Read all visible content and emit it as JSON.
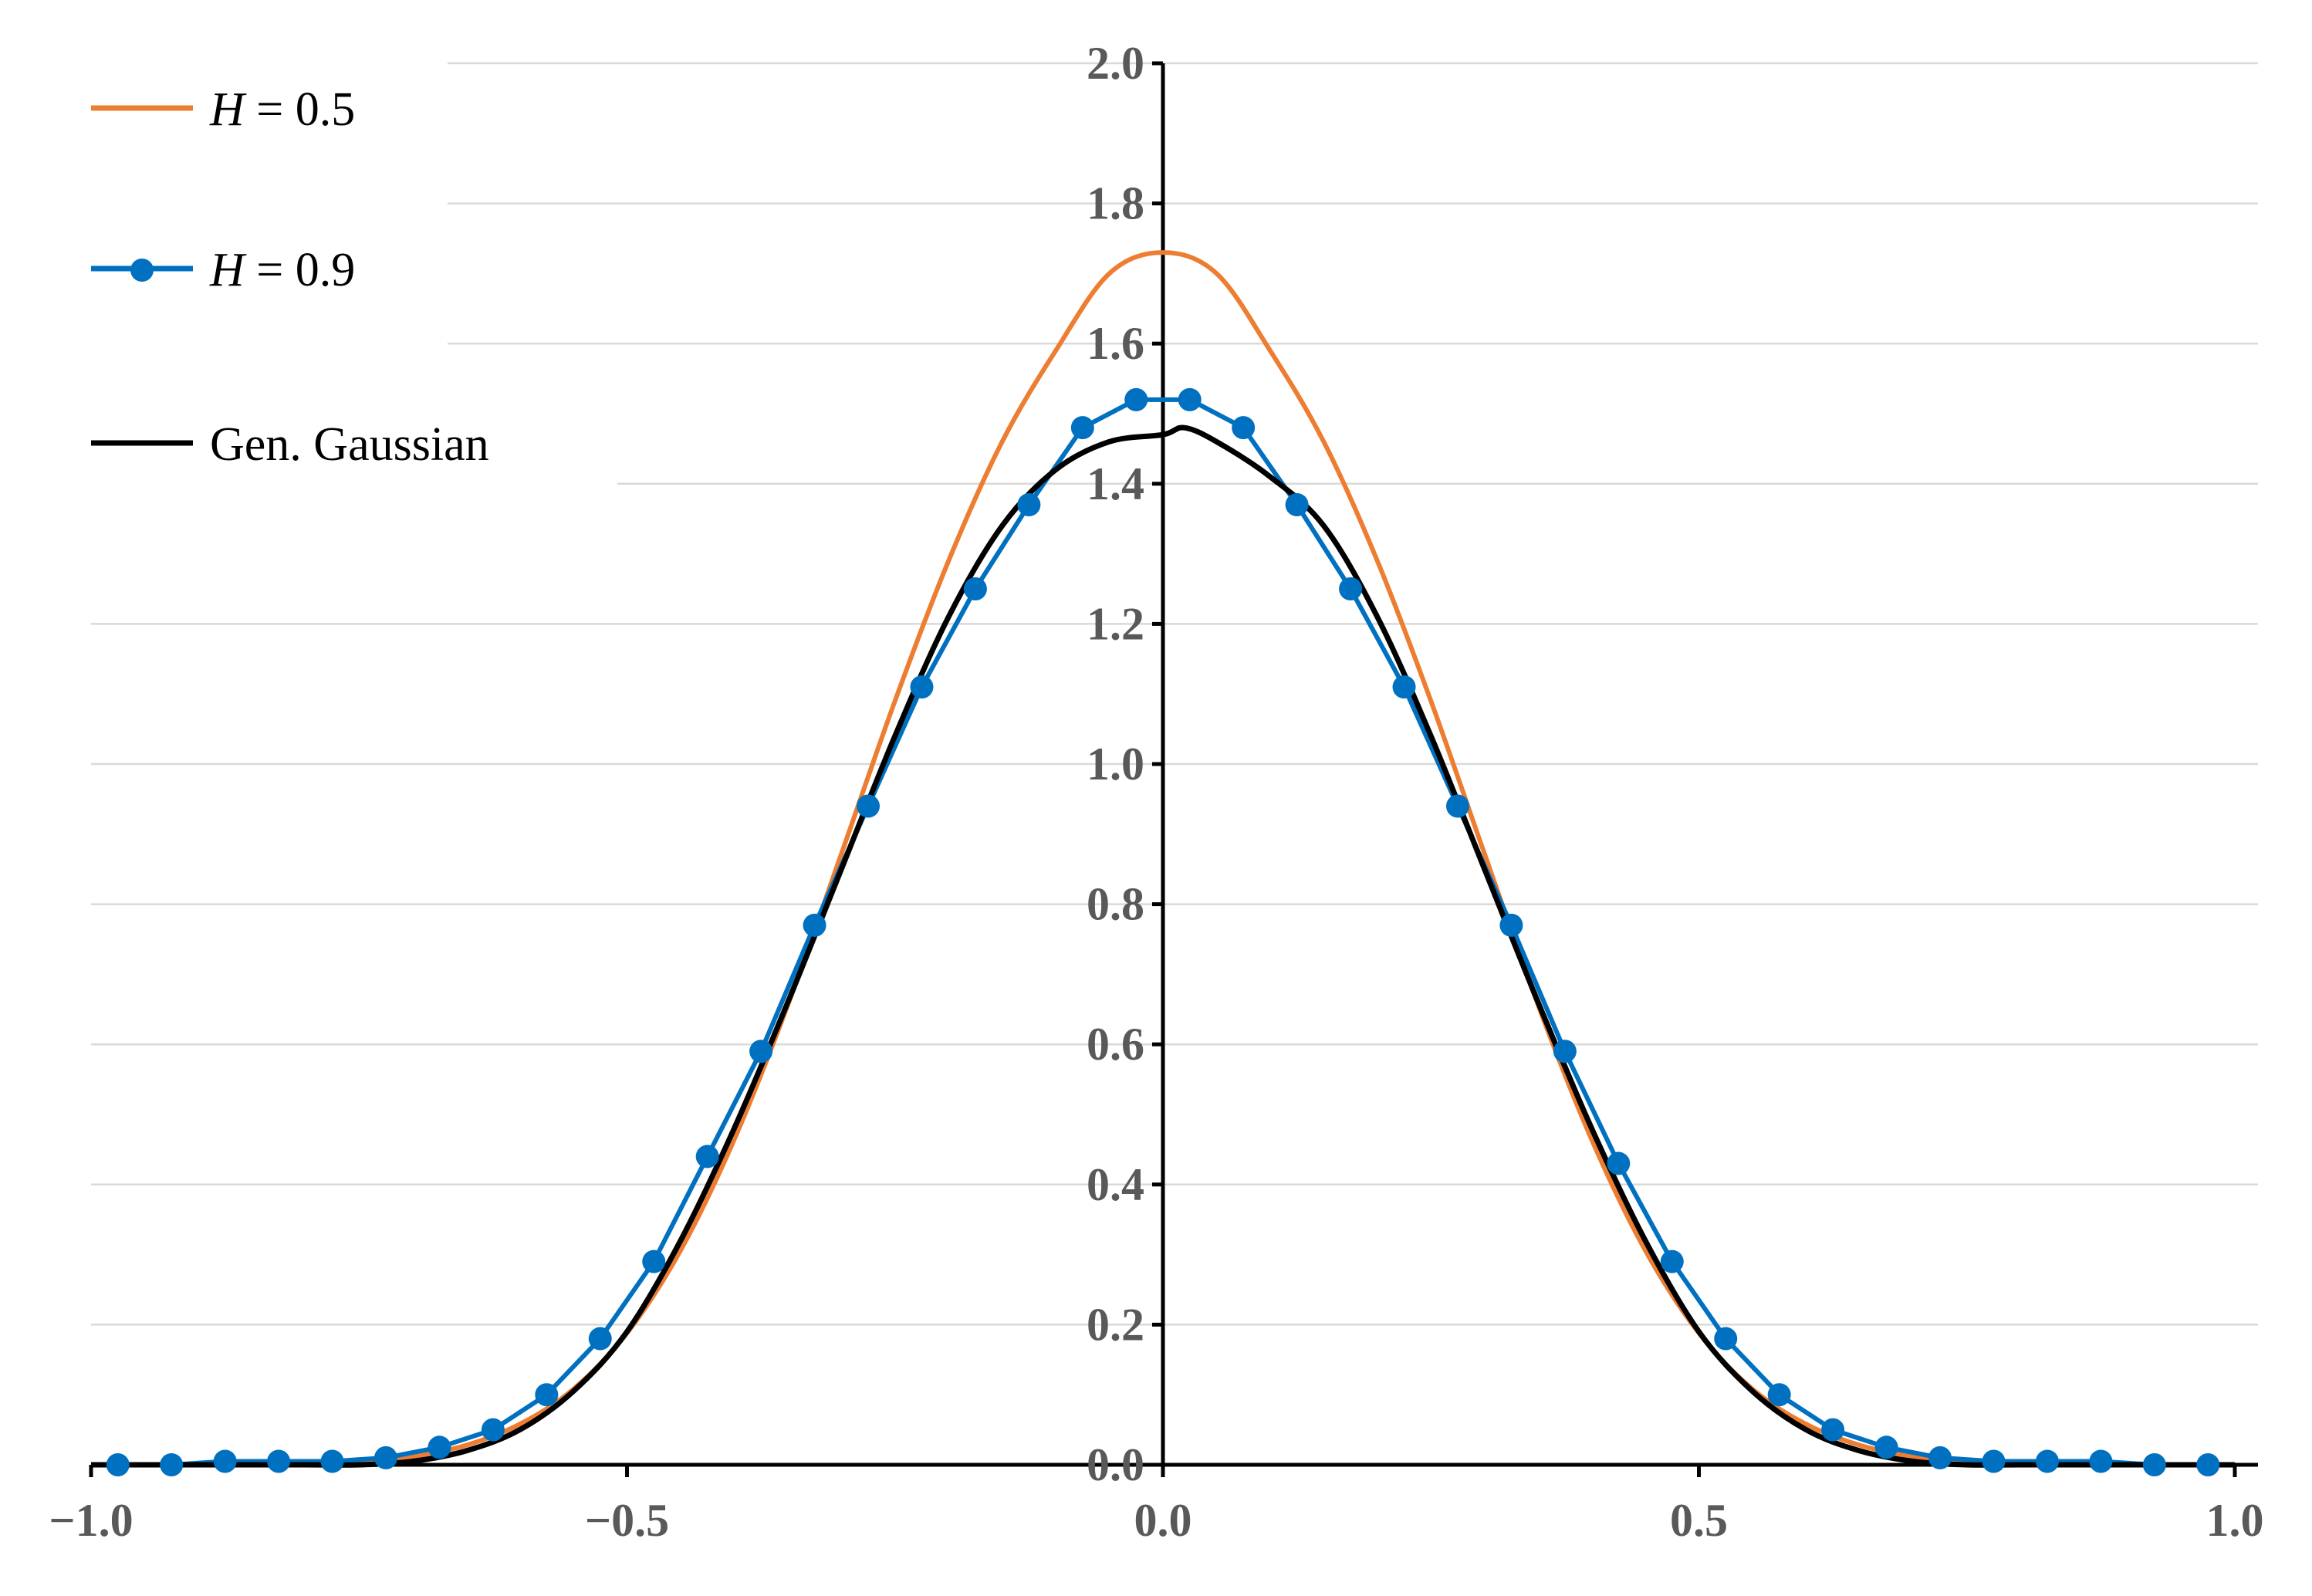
{
  "chart_data": {
    "type": "line",
    "title": "",
    "xlabel": "",
    "ylabel": "",
    "xlim": [
      -1.0,
      1.0
    ],
    "ylim": [
      0.0,
      2.0
    ],
    "x_ticks": [
      "−1.0",
      "−0.5",
      "0.0",
      "0.5",
      "1.0"
    ],
    "y_ticks": [
      "0.0",
      "0.2",
      "0.4",
      "0.6",
      "0.8",
      "1.0",
      "1.2",
      "1.4",
      "1.6",
      "1.8",
      "2.0"
    ],
    "grid": true,
    "legend_position": "top-left",
    "series": [
      {
        "name": "H = 0.5",
        "legend_italic": "H",
        "legend_rest": " = 0.5",
        "color": "#ed7d31",
        "style": "line",
        "x": [
          -1.0,
          -0.9,
          -0.8,
          -0.75,
          -0.7,
          -0.65,
          -0.6,
          -0.55,
          -0.5,
          -0.45,
          -0.4,
          -0.35,
          -0.3,
          -0.25,
          -0.2,
          -0.15,
          -0.1,
          -0.05,
          0.0,
          0.05,
          0.1,
          0.15,
          0.2,
          0.25,
          0.3,
          0.35,
          0.4,
          0.45,
          0.5,
          0.55,
          0.6,
          0.65,
          0.7,
          0.75,
          0.8,
          0.9,
          1.0
        ],
        "y": [
          0.0,
          0.0,
          0.003,
          0.006,
          0.012,
          0.028,
          0.058,
          0.108,
          0.188,
          0.306,
          0.464,
          0.656,
          0.872,
          1.09,
          1.29,
          1.46,
          1.59,
          1.7,
          1.73,
          1.7,
          1.59,
          1.46,
          1.29,
          1.09,
          0.872,
          0.656,
          0.464,
          0.306,
          0.188,
          0.108,
          0.058,
          0.028,
          0.012,
          0.006,
          0.003,
          0.0,
          0.0
        ]
      },
      {
        "name": "H = 0.9",
        "legend_italic": "H",
        "legend_rest": " = 0.9",
        "color": "#0070c0",
        "style": "line-markers",
        "x": [
          -0.975,
          -0.925,
          -0.875,
          -0.825,
          -0.775,
          -0.725,
          -0.675,
          -0.625,
          -0.575,
          -0.525,
          -0.475,
          -0.425,
          -0.375,
          -0.325,
          -0.275,
          -0.225,
          -0.175,
          -0.125,
          -0.075,
          -0.025,
          0.025,
          0.075,
          0.125,
          0.175,
          0.225,
          0.275,
          0.325,
          0.375,
          0.425,
          0.475,
          0.525,
          0.575,
          0.625,
          0.675,
          0.725,
          0.775,
          0.825,
          0.875,
          0.925,
          0.975
        ],
        "y": [
          0.0,
          0.0,
          0.005,
          0.005,
          0.005,
          0.01,
          0.025,
          0.05,
          0.1,
          0.18,
          0.29,
          0.44,
          0.59,
          0.77,
          0.94,
          1.11,
          1.25,
          1.37,
          1.48,
          1.52,
          1.52,
          1.48,
          1.37,
          1.25,
          1.11,
          0.94,
          0.77,
          0.59,
          0.43,
          0.29,
          0.18,
          0.1,
          0.05,
          0.025,
          0.01,
          0.005,
          0.005,
          0.005,
          0.0,
          0.0
        ]
      },
      {
        "name": "Gen. Gaussian",
        "legend_italic": "",
        "legend_rest": "Gen. Gaussian",
        "color": "#000000",
        "style": "line",
        "x": [
          -1.0,
          -0.9,
          -0.8,
          -0.75,
          -0.7,
          -0.65,
          -0.6,
          -0.55,
          -0.5,
          -0.45,
          -0.4,
          -0.35,
          -0.3,
          -0.25,
          -0.2,
          -0.15,
          -0.1,
          -0.05,
          0.0,
          0.02,
          0.05,
          0.1,
          0.15,
          0.2,
          0.25,
          0.3,
          0.35,
          0.4,
          0.45,
          0.5,
          0.55,
          0.6,
          0.65,
          0.7,
          0.75,
          0.8,
          0.9,
          1.0
        ],
        "y": [
          0.0,
          0.0,
          0.0,
          0.0,
          0.005,
          0.02,
          0.05,
          0.105,
          0.19,
          0.32,
          0.48,
          0.66,
          0.85,
          1.04,
          1.21,
          1.34,
          1.42,
          1.46,
          1.47,
          1.48,
          1.46,
          1.41,
          1.34,
          1.21,
          1.04,
          0.85,
          0.66,
          0.48,
          0.32,
          0.19,
          0.105,
          0.05,
          0.02,
          0.005,
          0.0,
          0.0,
          0.0,
          0.0
        ]
      }
    ]
  }
}
